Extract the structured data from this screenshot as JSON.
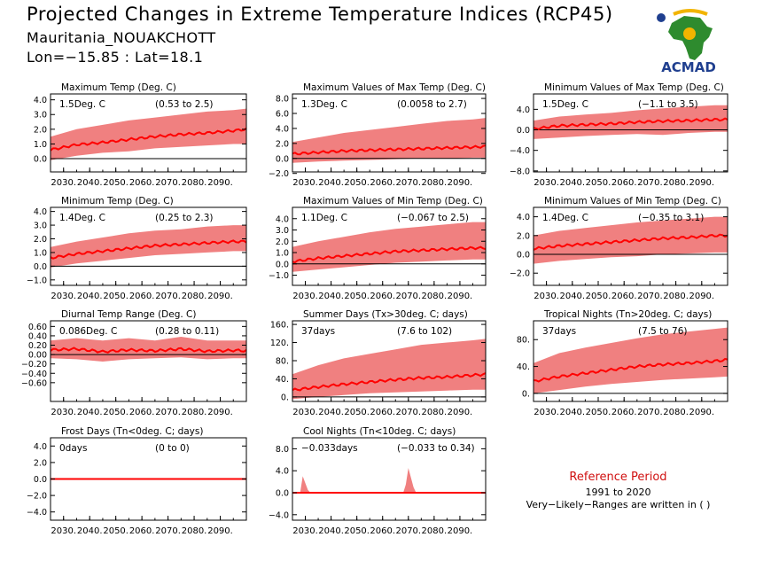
{
  "header": {
    "title": "Projected Changes in Extreme Temperature Indices (RCP45)",
    "subtitle": "Mauritania_NOUAKCHOTT",
    "coords": "Lon=−15.85 : Lat=18.1"
  },
  "logo": {
    "name": "ACMAD",
    "icon": "africa-map-logo-icon",
    "colors": [
      "#2e8b2e",
      "#f2b400",
      "#1f3f8f"
    ]
  },
  "reference": {
    "title": "Reference Period",
    "years": "1991 to 2020",
    "note": "Very−Likely−Ranges are written in ( )"
  },
  "colors": {
    "band": "#f08080",
    "mean": "#ff0000",
    "zero": "#000000",
    "ref_title": "#d01010"
  },
  "chart_data": [
    {
      "type": "area",
      "title": "Maximum Temp (Deg. C)",
      "value_label": "1.5Deg. C",
      "range_label": "(0.53 to 2.5)",
      "xlim": [
        2025,
        2100
      ],
      "x_ticks": [
        "2030.",
        "2040.",
        "2050.",
        "2060.",
        "2070.",
        "2080.",
        "2090."
      ],
      "ylim": [
        -0.9,
        4.4
      ],
      "y_ticks": [
        "4.0",
        "3.0",
        "2.0",
        "1.0",
        "0.0"
      ],
      "y_tick_values": [
        4,
        3,
        2,
        1,
        0
      ],
      "series": [
        {
          "x": [
            2025,
            2035,
            2045,
            2055,
            2065,
            2075,
            2085,
            2095,
            2100
          ],
          "values": [
            0.6,
            0.95,
            1.1,
            1.3,
            1.5,
            1.65,
            1.75,
            1.9,
            2.0
          ]
        }
      ],
      "band": {
        "x": [
          2025,
          2035,
          2045,
          2055,
          2065,
          2075,
          2085,
          2095,
          2100
        ],
        "lower": [
          -0.1,
          0.2,
          0.4,
          0.5,
          0.7,
          0.8,
          0.9,
          1.0,
          1.0
        ],
        "upper": [
          1.5,
          2.0,
          2.3,
          2.6,
          2.8,
          3.0,
          3.2,
          3.3,
          3.4
        ]
      }
    },
    {
      "type": "area",
      "title": "Maximum Values of Max Temp (Deg. C)",
      "value_label": "1.3Deg. C",
      "range_label": "(0.0058 to 2.7)",
      "xlim": [
        2025,
        2100
      ],
      "x_ticks": [
        "2030.",
        "2040.",
        "2050.",
        "2060.",
        "2070.",
        "2080.",
        "2090."
      ],
      "ylim": [
        -1.8,
        8.6
      ],
      "y_ticks": [
        "8.0",
        "6.0",
        "4.0",
        "2.0",
        "0.0",
        "−2.0"
      ],
      "y_tick_values": [
        8,
        6,
        4,
        2,
        0,
        -2
      ],
      "series": [
        {
          "x": [
            2025,
            2035,
            2045,
            2055,
            2065,
            2075,
            2085,
            2095,
            2100
          ],
          "values": [
            0.6,
            0.8,
            1.0,
            1.1,
            1.2,
            1.3,
            1.4,
            1.5,
            1.6
          ]
        }
      ],
      "band": {
        "x": [
          2025,
          2035,
          2045,
          2055,
          2065,
          2075,
          2085,
          2095,
          2100
        ],
        "lower": [
          -0.6,
          -0.4,
          -0.3,
          -0.2,
          -0.1,
          0.0,
          0.0,
          0.1,
          0.1
        ],
        "upper": [
          2.2,
          2.8,
          3.4,
          3.8,
          4.2,
          4.6,
          5.0,
          5.2,
          5.4
        ]
      }
    },
    {
      "type": "area",
      "title": "Minimum Values of Max Temp (Deg. C)",
      "value_label": "1.5Deg. C",
      "range_label": "(−1.1 to 3.5)",
      "xlim": [
        2025,
        2100
      ],
      "x_ticks": [
        "2030.",
        "2040.",
        "2050.",
        "2060.",
        "2070.",
        "2080.",
        "2090."
      ],
      "ylim": [
        -8.2,
        7.0
      ],
      "y_ticks": [
        "4.0",
        "0.0",
        "−4.0",
        "−8.0"
      ],
      "y_tick_values": [
        4,
        0,
        -4,
        -8
      ],
      "series": [
        {
          "x": [
            2025,
            2035,
            2045,
            2055,
            2065,
            2075,
            2085,
            2095,
            2100
          ],
          "values": [
            0.2,
            0.8,
            1.0,
            1.2,
            1.5,
            1.7,
            1.8,
            2.0,
            2.0
          ]
        }
      ],
      "band": {
        "x": [
          2025,
          2035,
          2045,
          2055,
          2065,
          2075,
          2085,
          2095,
          2100
        ],
        "lower": [
          -1.8,
          -1.5,
          -1.2,
          -1.0,
          -0.8,
          -1.0,
          -0.6,
          -0.4,
          -0.4
        ],
        "upper": [
          1.8,
          2.6,
          3.0,
          3.3,
          3.8,
          4.2,
          4.5,
          4.8,
          4.8
        ]
      }
    },
    {
      "type": "area",
      "title": "Minimum Temp (Deg. C)",
      "value_label": "1.4Deg. C",
      "range_label": "(0.25 to 2.3)",
      "xlim": [
        2025,
        2100
      ],
      "x_ticks": [
        "2030.",
        "2040.",
        "2050.",
        "2060.",
        "2070.",
        "2080.",
        "2090."
      ],
      "ylim": [
        -1.4,
        4.3
      ],
      "y_ticks": [
        "4.0",
        "3.0",
        "2.0",
        "1.0",
        "0.0",
        "−1.0"
      ],
      "y_tick_values": [
        4,
        3,
        2,
        1,
        0,
        -1
      ],
      "series": [
        {
          "x": [
            2025,
            2035,
            2045,
            2055,
            2065,
            2075,
            2085,
            2095,
            2100
          ],
          "values": [
            0.6,
            0.9,
            1.1,
            1.3,
            1.5,
            1.6,
            1.7,
            1.8,
            1.8
          ]
        }
      ],
      "band": {
        "x": [
          2025,
          2035,
          2045,
          2055,
          2065,
          2075,
          2085,
          2095,
          2100
        ],
        "lower": [
          -0.1,
          0.2,
          0.4,
          0.6,
          0.8,
          0.9,
          1.0,
          1.1,
          1.1
        ],
        "upper": [
          1.4,
          1.8,
          2.1,
          2.4,
          2.6,
          2.7,
          2.9,
          3.0,
          3.0
        ]
      }
    },
    {
      "type": "area",
      "title": "Maximum Values of Min Temp (Deg. C)",
      "value_label": "1.1Deg. C",
      "range_label": "(−0.067 to 2.5)",
      "xlim": [
        2025,
        2100
      ],
      "x_ticks": [
        "2030.",
        "2040.",
        "2050.",
        "2060.",
        "2070.",
        "2080.",
        "2090."
      ],
      "ylim": [
        -1.9,
        5.0
      ],
      "y_ticks": [
        "4.0",
        "3.0",
        "2.0",
        "1.0",
        "0.0",
        "−1.0"
      ],
      "y_tick_values": [
        4,
        3,
        2,
        1,
        0,
        -1
      ],
      "series": [
        {
          "x": [
            2025,
            2035,
            2045,
            2055,
            2065,
            2075,
            2085,
            2095,
            2100
          ],
          "values": [
            0.2,
            0.5,
            0.7,
            0.9,
            1.1,
            1.2,
            1.3,
            1.4,
            1.4
          ]
        }
      ],
      "band": {
        "x": [
          2025,
          2035,
          2045,
          2055,
          2065,
          2075,
          2085,
          2095,
          2100
        ],
        "lower": [
          -0.7,
          -0.5,
          -0.3,
          -0.1,
          0.1,
          0.2,
          0.3,
          0.4,
          0.4
        ],
        "upper": [
          1.5,
          2.0,
          2.4,
          2.8,
          3.1,
          3.3,
          3.5,
          3.7,
          3.7
        ]
      }
    },
    {
      "type": "area",
      "title": "Minimum Values of Min Temp (Deg. C)",
      "value_label": "1.4Deg. C",
      "range_label": "(−0.35 to 3.1)",
      "xlim": [
        2025,
        2100
      ],
      "x_ticks": [
        "2030.",
        "2040.",
        "2050.",
        "2060.",
        "2070.",
        "2080.",
        "2090."
      ],
      "ylim": [
        -3.3,
        5.0
      ],
      "y_ticks": [
        "4.0",
        "2.0",
        "0.0",
        "−2.0"
      ],
      "y_tick_values": [
        4,
        2,
        0,
        -2
      ],
      "series": [
        {
          "x": [
            2025,
            2035,
            2045,
            2055,
            2065,
            2075,
            2085,
            2095,
            2100
          ],
          "values": [
            0.6,
            0.9,
            1.1,
            1.3,
            1.5,
            1.7,
            1.8,
            2.0,
            2.0
          ]
        }
      ],
      "band": {
        "x": [
          2025,
          2035,
          2045,
          2055,
          2065,
          2075,
          2085,
          2095,
          2100
        ],
        "lower": [
          -1.0,
          -0.7,
          -0.5,
          -0.3,
          -0.2,
          0.0,
          0.1,
          0.2,
          0.2
        ],
        "upper": [
          2.0,
          2.5,
          2.8,
          3.1,
          3.4,
          3.6,
          3.8,
          4.0,
          4.0
        ]
      }
    },
    {
      "type": "area",
      "title": "Diurnal Temp Range (Deg. C)",
      "value_label": "0.086Deg. C",
      "range_label": "(0.28 to 0.11)",
      "xlim": [
        2025,
        2100
      ],
      "x_ticks": [
        "2030.",
        "2040.",
        "2050.",
        "2060.",
        "2070.",
        "2080.",
        "2090."
      ],
      "ylim": [
        -1.0,
        0.72
      ],
      "y_ticks": [
        "0.60",
        "0.40",
        "0.20",
        "0.00",
        "−0.20",
        "−0.40",
        "−0.60"
      ],
      "y_tick_values": [
        0.6,
        0.4,
        0.2,
        0.0,
        -0.2,
        -0.4,
        -0.6
      ],
      "series": [
        {
          "x": [
            2025,
            2035,
            2045,
            2055,
            2065,
            2075,
            2085,
            2095,
            2100
          ],
          "values": [
            0.1,
            0.12,
            0.06,
            0.1,
            0.08,
            0.12,
            0.07,
            0.09,
            0.08
          ]
        }
      ],
      "band": {
        "x": [
          2025,
          2035,
          2045,
          2055,
          2065,
          2075,
          2085,
          2095,
          2100
        ],
        "lower": [
          -0.08,
          -0.1,
          -0.15,
          -0.1,
          -0.08,
          -0.06,
          -0.1,
          -0.08,
          -0.08
        ],
        "upper": [
          0.3,
          0.35,
          0.3,
          0.35,
          0.3,
          0.38,
          0.3,
          0.3,
          0.3
        ]
      }
    },
    {
      "type": "area",
      "title": "Summer Days (Tx>30deg. C; days)",
      "value_label": "37days",
      "range_label": "(7.6 to 102)",
      "xlim": [
        2025,
        2100
      ],
      "x_ticks": [
        "2030.",
        "2040.",
        "2050.",
        "2060.",
        "2070.",
        "2080.",
        "2090."
      ],
      "ylim": [
        -10,
        168
      ],
      "y_ticks": [
        "160.",
        "120.",
        "80.",
        "40.",
        "0."
      ],
      "y_tick_values": [
        160,
        120,
        80,
        40,
        0
      ],
      "series": [
        {
          "x": [
            2025,
            2035,
            2045,
            2055,
            2065,
            2075,
            2085,
            2095,
            2100
          ],
          "values": [
            15,
            22,
            28,
            33,
            38,
            42,
            44,
            48,
            50
          ]
        }
      ],
      "band": {
        "x": [
          2025,
          2035,
          2045,
          2055,
          2065,
          2075,
          2085,
          2095,
          2100
        ],
        "lower": [
          -5,
          0,
          4,
          8,
          10,
          12,
          14,
          16,
          16
        ],
        "upper": [
          50,
          70,
          85,
          95,
          105,
          115,
          120,
          125,
          128
        ]
      }
    },
    {
      "type": "area",
      "title": "Tropical Nights (Tn>20deg. C; days)",
      "value_label": "37days",
      "range_label": "(7.5 to 76)",
      "xlim": [
        2025,
        2100
      ],
      "x_ticks": [
        "2030.",
        "2040.",
        "2050.",
        "2060.",
        "2070.",
        "2080.",
        "2090."
      ],
      "ylim": [
        -12,
        108
      ],
      "y_ticks": [
        "80.",
        "40.",
        "0."
      ],
      "y_tick_values": [
        80,
        40,
        0
      ],
      "series": [
        {
          "x": [
            2025,
            2035,
            2045,
            2055,
            2065,
            2075,
            2085,
            2095,
            2100
          ],
          "values": [
            18,
            25,
            30,
            35,
            40,
            43,
            45,
            48,
            50
          ]
        }
      ],
      "band": {
        "x": [
          2025,
          2035,
          2045,
          2055,
          2065,
          2075,
          2085,
          2095,
          2100
        ],
        "lower": [
          0,
          5,
          10,
          14,
          17,
          20,
          22,
          24,
          25
        ],
        "upper": [
          45,
          60,
          68,
          75,
          82,
          88,
          92,
          96,
          98
        ]
      }
    },
    {
      "type": "area",
      "title": "Frost Days (Tn<0deg. C; days)",
      "value_label": "0days",
      "range_label": "(0 to 0)",
      "xlim": [
        2025,
        2100
      ],
      "x_ticks": [
        "2030.",
        "2040.",
        "2050.",
        "2060.",
        "2070.",
        "2080.",
        "2090."
      ],
      "ylim": [
        -5.0,
        5.0
      ],
      "y_ticks": [
        "4.0",
        "2.0",
        "0.0",
        "−2.0",
        "−4.0"
      ],
      "y_tick_values": [
        4,
        2,
        0,
        -2,
        -4
      ],
      "series": [
        {
          "x": [
            2025,
            2100
          ],
          "values": [
            0,
            0
          ]
        }
      ],
      "band": {
        "x": [
          2025,
          2100
        ],
        "lower": [
          0,
          0
        ],
        "upper": [
          0,
          0
        ]
      }
    },
    {
      "type": "area",
      "title": "Cool Nights (Tn<10deg. C; days)",
      "value_label": "−0.033days",
      "range_label": "(−0.033 to 0.34)",
      "xlim": [
        2025,
        2100
      ],
      "x_ticks": [
        "2030.",
        "2040.",
        "2050.",
        "2060.",
        "2070.",
        "2080.",
        "2090."
      ],
      "ylim": [
        -5.0,
        10.0
      ],
      "y_ticks": [
        "8.0",
        "4.0",
        "0.0",
        "−4.0"
      ],
      "y_tick_values": [
        8,
        4,
        0,
        -4
      ],
      "series": [
        {
          "x": [
            2025,
            2100
          ],
          "values": [
            0,
            0
          ]
        }
      ],
      "band": {
        "x": [
          2025,
          2028,
          2029,
          2031,
          2032,
          2068,
          2069,
          2070,
          2072,
          2073,
          2100
        ],
        "lower": [
          0,
          0,
          0,
          0,
          0,
          0,
          0,
          0,
          0,
          0,
          0
        ],
        "upper": [
          0,
          0,
          3.0,
          0.5,
          0,
          0,
          1.5,
          4.5,
          1.0,
          0,
          0
        ]
      }
    }
  ]
}
